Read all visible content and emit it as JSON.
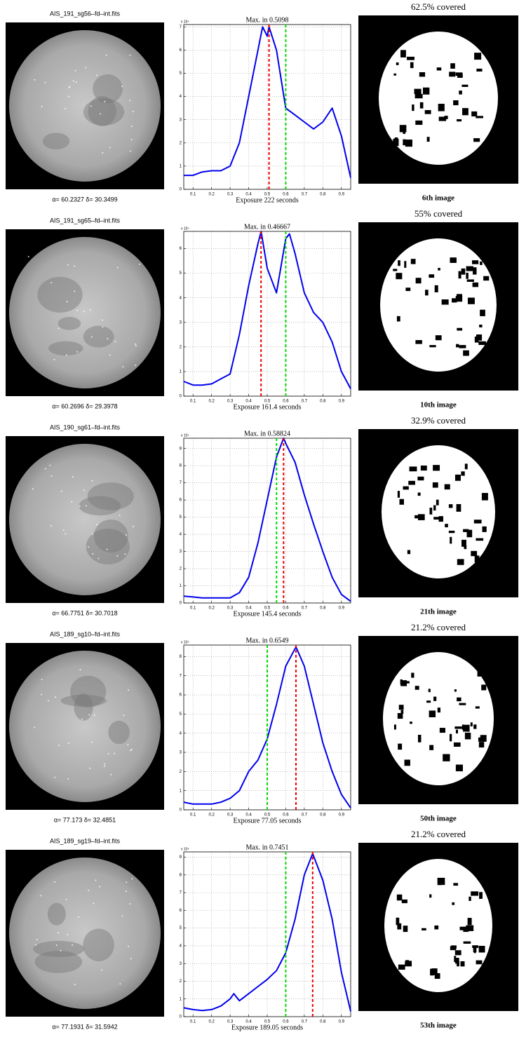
{
  "chart_data": [
    {
      "type": "line",
      "title": "Max. in 0.5098",
      "x_label": "Exposure 222 seconds",
      "y_scale_label": "x 10⁴",
      "color": "#0000ee",
      "x": [
        0.05,
        0.1,
        0.15,
        0.2,
        0.25,
        0.3,
        0.35,
        0.4,
        0.45,
        0.475,
        0.5,
        0.51,
        0.55,
        0.6,
        0.65,
        0.7,
        0.75,
        0.8,
        0.85,
        0.9,
        0.95
      ],
      "values": [
        0.6,
        0.6,
        0.75,
        0.8,
        0.8,
        1.0,
        2.0,
        4.0,
        6.0,
        7.0,
        6.6,
        7.0,
        6.0,
        3.5,
        3.2,
        2.9,
        2.6,
        2.9,
        3.5,
        2.3,
        0.5
      ],
      "markers": [
        {
          "x": 0.5098,
          "color": "#ee0000"
        },
        {
          "x": 0.6,
          "color": "#00dd00"
        }
      ],
      "xlim": [
        0.05,
        0.95
      ],
      "xticks": [
        0.1,
        0.2,
        0.3,
        0.4,
        0.5,
        0.6,
        0.7,
        0.8,
        0.9
      ],
      "ylim": [
        0,
        7.1
      ],
      "yticks": [
        0,
        1,
        2,
        3,
        4,
        5,
        6,
        7
      ],
      "grid": true
    },
    {
      "type": "line",
      "title": "Max. in 0.46667",
      "x_label": "Exposure 161.4 seconds",
      "y_scale_label": "x 10⁴",
      "color": "#0000ee",
      "x": [
        0.05,
        0.1,
        0.15,
        0.2,
        0.25,
        0.3,
        0.35,
        0.4,
        0.45,
        0.467,
        0.5,
        0.55,
        0.6,
        0.62,
        0.65,
        0.7,
        0.75,
        0.8,
        0.85,
        0.9,
        0.95
      ],
      "values": [
        0.6,
        0.45,
        0.45,
        0.5,
        0.7,
        0.9,
        2.5,
        4.5,
        6.2,
        6.7,
        5.2,
        4.2,
        6.4,
        6.6,
        5.8,
        4.2,
        3.4,
        3.0,
        2.2,
        1.0,
        0.3
      ],
      "markers": [
        {
          "x": 0.46667,
          "color": "#ee0000"
        },
        {
          "x": 0.6,
          "color": "#00dd00"
        }
      ],
      "xlim": [
        0.05,
        0.95
      ],
      "xticks": [
        0.1,
        0.2,
        0.3,
        0.4,
        0.5,
        0.6,
        0.7,
        0.8,
        0.9
      ],
      "ylim": [
        0,
        6.7
      ],
      "yticks": [
        0,
        1,
        2,
        3,
        4,
        5,
        6
      ],
      "grid": true
    },
    {
      "type": "line",
      "title": "Max. in 0.58824",
      "x_label": "Exposure 145.4 seconds",
      "y_scale_label": "x 10⁴",
      "color": "#0000ee",
      "x": [
        0.05,
        0.1,
        0.15,
        0.2,
        0.25,
        0.3,
        0.35,
        0.4,
        0.45,
        0.5,
        0.55,
        0.588,
        0.6,
        0.65,
        0.7,
        0.75,
        0.8,
        0.85,
        0.9,
        0.95
      ],
      "values": [
        0.4,
        0.35,
        0.3,
        0.3,
        0.3,
        0.3,
        0.6,
        1.5,
        3.5,
        6.0,
        8.5,
        9.6,
        9.3,
        8.2,
        6.3,
        4.6,
        3.0,
        1.5,
        0.5,
        0.1
      ],
      "markers": [
        {
          "x": 0.58824,
          "color": "#ee0000"
        },
        {
          "x": 0.55,
          "color": "#00dd00"
        }
      ],
      "xlim": [
        0.05,
        0.95
      ],
      "xticks": [
        0.1,
        0.2,
        0.3,
        0.4,
        0.5,
        0.6,
        0.7,
        0.8,
        0.9
      ],
      "ylim": [
        0,
        9.6
      ],
      "yticks": [
        0,
        1,
        2,
        3,
        4,
        5,
        6,
        7,
        8,
        9
      ],
      "grid": true
    },
    {
      "type": "line",
      "title": "Max. in 0.6549",
      "x_label": "Exposure 77.05 seconds",
      "y_scale_label": "x 10⁴",
      "color": "#0000ee",
      "x": [
        0.05,
        0.1,
        0.15,
        0.2,
        0.25,
        0.3,
        0.35,
        0.4,
        0.45,
        0.5,
        0.55,
        0.6,
        0.655,
        0.7,
        0.75,
        0.8,
        0.85,
        0.9,
        0.95
      ],
      "values": [
        0.4,
        0.3,
        0.3,
        0.3,
        0.4,
        0.6,
        1.0,
        2.0,
        2.6,
        3.7,
        5.5,
        7.5,
        8.5,
        7.5,
        5.5,
        3.5,
        2.0,
        0.8,
        0.1
      ],
      "markers": [
        {
          "x": 0.6549,
          "color": "#ee0000"
        },
        {
          "x": 0.5,
          "color": "#00dd00"
        }
      ],
      "xlim": [
        0.05,
        0.95
      ],
      "xticks": [
        0.1,
        0.2,
        0.3,
        0.4,
        0.5,
        0.6,
        0.7,
        0.8,
        0.9
      ],
      "ylim": [
        0,
        8.6
      ],
      "yticks": [
        0,
        1,
        2,
        3,
        4,
        5,
        6,
        7,
        8
      ],
      "grid": true
    },
    {
      "type": "line",
      "title": "Max. in 0.7451",
      "x_label": "Exposure 189.05 seconds",
      "y_scale_label": "x 10⁴",
      "color": "#0000ee",
      "x": [
        0.05,
        0.1,
        0.15,
        0.2,
        0.25,
        0.3,
        0.32,
        0.35,
        0.4,
        0.45,
        0.5,
        0.55,
        0.6,
        0.65,
        0.7,
        0.745,
        0.8,
        0.85,
        0.9,
        0.95
      ],
      "values": [
        0.5,
        0.4,
        0.35,
        0.4,
        0.6,
        1.0,
        1.3,
        0.9,
        1.3,
        1.7,
        2.1,
        2.6,
        3.6,
        5.5,
        8.0,
        9.2,
        7.7,
        5.5,
        2.5,
        0.3
      ],
      "markers": [
        {
          "x": 0.7451,
          "color": "#ee0000"
        },
        {
          "x": 0.6,
          "color": "#00dd00"
        }
      ],
      "xlim": [
        0.05,
        0.95
      ],
      "xticks": [
        0.1,
        0.2,
        0.3,
        0.4,
        0.5,
        0.6,
        0.7,
        0.8,
        0.9
      ],
      "ylim": [
        0,
        9.3
      ],
      "yticks": [
        0,
        1,
        2,
        3,
        4,
        5,
        6,
        7,
        8,
        9
      ],
      "grid": true
    }
  ],
  "rows": [
    {
      "image_title": "AIS_191_sg56–fd–int.fits",
      "coords": "α= 60.2327 δ= 30.3499",
      "coverage": "62.5% covered",
      "caption": "6th image"
    },
    {
      "image_title": "AIS_191_sg65–fd–int.fits",
      "coords": "α= 60.2696 δ= 29.3978",
      "coverage": "55% covered",
      "caption": "10th image"
    },
    {
      "image_title": "AIS_190_sg61–fd–int.fits",
      "coords": "α= 66.7751 δ= 30.7018",
      "coverage": "32.9% covered",
      "caption": "21th image"
    },
    {
      "image_title": "AIS_189_sg10–fd–int.fits",
      "coords": "α= 77.173 δ= 32.4851",
      "coverage": "21.2% covered",
      "caption": "50th image"
    },
    {
      "image_title": "AIS_189_sg19–fd–int.fits",
      "coords": "α= 77.1931 δ= 31.5942",
      "coverage": "21.2% covered",
      "caption": "53th image"
    }
  ]
}
